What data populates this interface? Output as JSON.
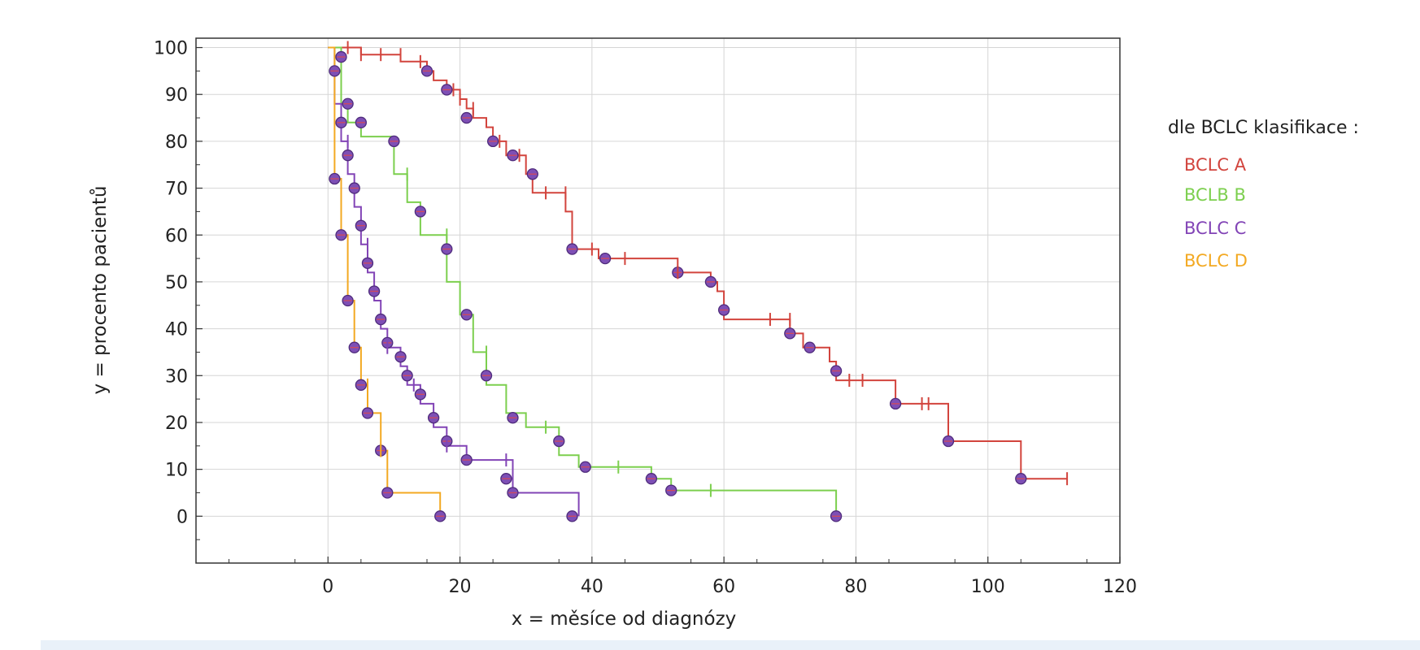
{
  "chart_data": {
    "type": "line",
    "title": "",
    "xlabel": "x = měsíce od diagnózy",
    "ylabel": "y = procento pacientů",
    "xlim": [
      -20,
      120
    ],
    "ylim": [
      -10,
      102
    ],
    "x_ticks": [
      "0",
      "20",
      "40",
      "60",
      "80",
      "100",
      "120"
    ],
    "y_ticks": [
      "0",
      "10",
      "20",
      "30",
      "40",
      "50",
      "60",
      "70",
      "80",
      "90",
      "100"
    ],
    "grid": true,
    "legend_title": "dle BCLC klasifikace :",
    "legend_position": "right",
    "series": [
      {
        "name": "BCLC A",
        "color": "#d2443d",
        "points": [
          [
            0,
            100
          ],
          [
            5,
            100
          ],
          [
            5,
            98.5
          ],
          [
            11,
            98.5
          ],
          [
            11,
            97
          ],
          [
            15,
            97
          ],
          [
            15,
            95
          ],
          [
            16,
            95
          ],
          [
            16,
            93
          ],
          [
            18,
            93
          ],
          [
            18,
            91
          ],
          [
            20,
            91
          ],
          [
            20,
            89
          ],
          [
            21,
            89
          ],
          [
            21,
            87
          ],
          [
            22,
            87
          ],
          [
            22,
            85
          ],
          [
            24,
            85
          ],
          [
            24,
            83
          ],
          [
            25,
            83
          ],
          [
            25,
            80
          ],
          [
            27,
            80
          ],
          [
            27,
            77
          ],
          [
            30,
            77
          ],
          [
            30,
            73
          ],
          [
            31,
            73
          ],
          [
            31,
            69
          ],
          [
            36,
            69
          ],
          [
            36,
            65
          ],
          [
            37,
            65
          ],
          [
            37,
            57
          ],
          [
            41,
            57
          ],
          [
            41,
            55
          ],
          [
            53,
            55
          ],
          [
            53,
            52
          ],
          [
            58,
            52
          ],
          [
            58,
            50
          ],
          [
            59,
            50
          ],
          [
            59,
            48
          ],
          [
            60,
            48
          ],
          [
            60,
            42
          ],
          [
            70,
            42
          ],
          [
            70,
            39
          ],
          [
            72,
            39
          ],
          [
            72,
            36
          ],
          [
            76,
            36
          ],
          [
            76,
            33
          ],
          [
            77,
            33
          ],
          [
            77,
            29
          ],
          [
            86,
            29
          ],
          [
            86,
            24
          ],
          [
            94,
            24
          ],
          [
            94,
            16
          ],
          [
            105,
            16
          ],
          [
            105,
            8
          ],
          [
            112,
            8
          ]
        ],
        "censor_x": [
          3,
          5,
          8,
          11,
          14,
          19,
          20,
          22,
          26,
          29,
          33,
          36,
          40,
          45,
          53,
          67,
          70,
          79,
          81,
          90,
          91,
          112
        ],
        "censor_y": [
          100,
          98.5,
          98.5,
          98.5,
          97,
          91,
          89,
          87,
          80,
          77,
          69,
          69,
          57,
          55,
          52,
          42,
          42,
          29,
          29,
          24,
          24,
          8
        ],
        "event_x": [
          2,
          15,
          18,
          21,
          25,
          28,
          31,
          37,
          42,
          53,
          58,
          60,
          70,
          73,
          77,
          86,
          94,
          105
        ],
        "event_y": [
          98,
          95,
          91,
          85,
          80,
          77,
          73,
          57,
          55,
          52,
          50,
          44,
          39,
          36,
          31,
          24,
          16,
          8
        ]
      },
      {
        "name": "BCLB B",
        "color": "#7ccf4e",
        "points": [
          [
            0,
            100
          ],
          [
            2,
            100
          ],
          [
            2,
            88
          ],
          [
            3,
            88
          ],
          [
            3,
            84
          ],
          [
            5,
            84
          ],
          [
            5,
            81
          ],
          [
            10,
            81
          ],
          [
            10,
            73
          ],
          [
            12,
            73
          ],
          [
            12,
            67
          ],
          [
            14,
            67
          ],
          [
            14,
            60
          ],
          [
            18,
            60
          ],
          [
            18,
            50
          ],
          [
            20,
            50
          ],
          [
            20,
            43
          ],
          [
            22,
            43
          ],
          [
            22,
            35
          ],
          [
            24,
            35
          ],
          [
            24,
            28
          ],
          [
            27,
            28
          ],
          [
            27,
            22
          ],
          [
            30,
            22
          ],
          [
            30,
            19
          ],
          [
            35,
            19
          ],
          [
            35,
            13
          ],
          [
            38,
            13
          ],
          [
            38,
            10.5
          ],
          [
            49,
            10.5
          ],
          [
            49,
            8
          ],
          [
            52,
            8
          ],
          [
            52,
            5.5
          ],
          [
            77,
            5.5
          ],
          [
            77,
            0
          ]
        ],
        "censor_x": [
          12,
          18,
          24,
          33,
          44,
          58
        ],
        "censor_y": [
          73,
          60,
          35,
          19,
          10.5,
          5.5
        ],
        "event_x": [
          3,
          5,
          10,
          14,
          18,
          21,
          24,
          28,
          35,
          39,
          49,
          52,
          77
        ],
        "event_y": [
          88,
          84,
          80,
          65,
          57,
          43,
          30,
          21,
          16,
          10.5,
          8,
          5.5,
          0
        ]
      },
      {
        "name": "BCLC C",
        "color": "#8244b6",
        "points": [
          [
            0,
            100
          ],
          [
            1,
            100
          ],
          [
            1,
            88
          ],
          [
            2,
            88
          ],
          [
            2,
            80
          ],
          [
            3,
            80
          ],
          [
            3,
            73
          ],
          [
            4,
            73
          ],
          [
            4,
            66
          ],
          [
            5,
            66
          ],
          [
            5,
            58
          ],
          [
            6,
            58
          ],
          [
            6,
            52
          ],
          [
            7,
            52
          ],
          [
            7,
            46
          ],
          [
            8,
            46
          ],
          [
            8,
            40
          ],
          [
            9,
            40
          ],
          [
            9,
            36
          ],
          [
            11,
            36
          ],
          [
            11,
            32
          ],
          [
            12,
            32
          ],
          [
            12,
            28
          ],
          [
            14,
            28
          ],
          [
            14,
            24
          ],
          [
            16,
            24
          ],
          [
            16,
            19
          ],
          [
            18,
            19
          ],
          [
            18,
            15
          ],
          [
            21,
            15
          ],
          [
            21,
            12
          ],
          [
            28,
            12
          ],
          [
            28,
            5
          ],
          [
            38,
            5
          ],
          [
            38,
            0
          ]
        ],
        "censor_x": [
          3,
          6,
          9,
          13,
          18,
          27
        ],
        "censor_y": [
          80,
          58,
          36,
          28,
          15,
          12
        ],
        "event_x": [
          1,
          2,
          3,
          4,
          5,
          6,
          7,
          8,
          9,
          11,
          12,
          14,
          16,
          18,
          21,
          27,
          28,
          37
        ],
        "event_y": [
          95,
          84,
          77,
          70,
          62,
          54,
          48,
          42,
          37,
          34,
          30,
          26,
          21,
          16,
          12,
          8,
          5,
          0
        ]
      },
      {
        "name": "BCLC D",
        "color": "#f3a922",
        "points": [
          [
            0,
            100
          ],
          [
            1,
            100
          ],
          [
            1,
            72
          ],
          [
            2,
            72
          ],
          [
            2,
            60
          ],
          [
            3,
            60
          ],
          [
            3,
            46
          ],
          [
            4,
            46
          ],
          [
            4,
            36
          ],
          [
            5,
            36
          ],
          [
            5,
            28
          ],
          [
            6,
            28
          ],
          [
            6,
            22
          ],
          [
            8,
            22
          ],
          [
            8,
            14
          ],
          [
            9,
            14
          ],
          [
            9,
            5
          ],
          [
            17,
            5
          ],
          [
            17,
            0
          ]
        ],
        "censor_x": [
          6,
          8
        ],
        "censor_y": [
          28,
          14
        ],
        "event_x": [
          1,
          2,
          3,
          4,
          5,
          6,
          8,
          9,
          17
        ],
        "event_y": [
          72,
          60,
          46,
          36,
          28,
          22,
          14,
          5,
          0
        ]
      }
    ]
  }
}
